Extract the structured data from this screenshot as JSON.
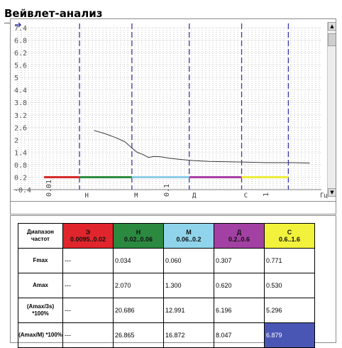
{
  "window": {
    "title": "Вейвлет-анализ"
  },
  "chart": {
    "y_ticks": [
      "7.4",
      "6.8",
      "6.2",
      "5.6",
      "5",
      "4.4",
      "3.8",
      "3.2",
      "2.6",
      "2",
      "1.4",
      "0.8",
      "0.2",
      "-0.4"
    ],
    "x_labels": [
      "0.01",
      "0.1",
      "1"
    ],
    "x_unit": "Гц",
    "band_markers": [
      "Н",
      "М",
      "Д",
      "С"
    ],
    "colors": {
      "curve": "#3a3a3a",
      "dashed": "#3a3ab0",
      "grid": "#9a9a9a"
    }
  },
  "chart_data": {
    "type": "line",
    "xlabel": "Гц",
    "ylim": [
      -0.4,
      7.4
    ],
    "x_scale": "log",
    "series": [
      {
        "x": [
          0.027,
          0.034,
          0.043,
          0.052,
          0.06,
          0.067,
          0.075,
          0.085,
          0.095,
          0.11,
          0.13,
          0.16,
          0.22,
          0.3,
          0.45,
          0.7,
          1.0,
          1.3,
          1.8,
          2.5
        ],
        "values": [
          2.45,
          2.3,
          2.1,
          1.9,
          1.6,
          1.4,
          1.3,
          1.15,
          1.2,
          1.18,
          1.12,
          1.06,
          1.0,
          0.96,
          0.94,
          0.92,
          0.9,
          0.9,
          0.9,
          0.88
        ]
      }
    ],
    "bands": [
      {
        "label": "Э",
        "range": "0.0095..0.02",
        "color": "#d42a2a"
      },
      {
        "label": "Н",
        "range": "0.02..0.06",
        "color": "#2e8b3d"
      },
      {
        "label": "М",
        "range": "0.06..0.2",
        "color": "#8ccce6"
      },
      {
        "label": "Д",
        "range": "0.2..0.6",
        "color": "#a63fa6"
      },
      {
        "label": "С",
        "range": "0.6..1.6",
        "color": "#ecec3a"
      }
    ]
  },
  "table": {
    "corner": "Диапазон частот",
    "bands": [
      {
        "name": "Э",
        "range": "0.0095..0.02",
        "bg": "#e0262c",
        "fg": "#111111"
      },
      {
        "name": "Н",
        "range": "0.02..0.06",
        "bg": "#2b8a40",
        "fg": "#111111"
      },
      {
        "name": "М",
        "range": "0.06..0.2",
        "bg": "#8fd4ea",
        "fg": "#111111"
      },
      {
        "name": "Д",
        "range": "0.2..0.6",
        "bg": "#a340a3",
        "fg": "#111111"
      },
      {
        "name": "С",
        "range": "0.6..1.6",
        "bg": "#f2f23c",
        "fg": "#111111"
      }
    ],
    "rows": [
      {
        "label": "Fmax",
        "values": [
          "---",
          "0.034",
          "0.060",
          "0.307",
          "0.771"
        ]
      },
      {
        "label": "Amax",
        "values": [
          "---",
          "2.070",
          "1.300",
          "0.620",
          "0.530"
        ]
      },
      {
        "label": "(Amax/3s) *100%",
        "values": [
          "---",
          "20.686",
          "12.991",
          "6.196",
          "5.296"
        ]
      },
      {
        "label": "(Amax/M) *100%",
        "values": [
          "---",
          "26.865",
          "16.872",
          "8.047",
          "6.879"
        ]
      }
    ]
  }
}
